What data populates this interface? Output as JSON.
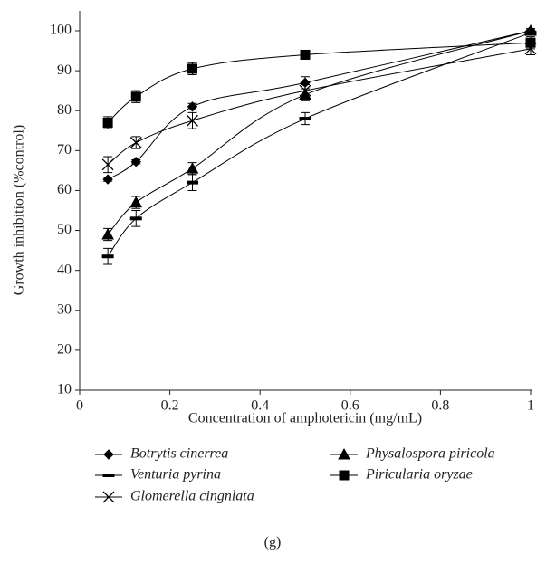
{
  "chart_data": {
    "type": "line",
    "xlabel": "Concentration of amphotericin (mg/mL)",
    "ylabel": "Growth inhibition (%control)",
    "caption": "(g)",
    "x": [
      0.0625,
      0.125,
      0.25,
      0.5,
      1
    ],
    "xlim": [
      0,
      1
    ],
    "xticks": [
      0,
      0.2,
      0.4,
      0.6,
      0.8,
      1
    ],
    "ylim": [
      10,
      100
    ],
    "yticks": [
      10,
      20,
      30,
      40,
      50,
      60,
      70,
      80,
      90,
      100
    ],
    "series": [
      {
        "name": "Botrytis cinerrea",
        "color": "#000000",
        "marker": "diamond",
        "values": [
          62.8,
          67.2,
          81,
          87,
          100
        ],
        "errors": [
          0.5,
          0.5,
          0.8,
          1.5,
          0.5
        ]
      },
      {
        "name": "Venturia pyrina",
        "color": "#000000",
        "marker": "dash",
        "values": [
          43.5,
          53,
          62,
          78,
          99.5
        ],
        "errors": [
          2,
          2,
          2,
          1.5,
          0.5
        ]
      },
      {
        "name": "Glomerella cingnlata",
        "color": "#000000",
        "marker": "x",
        "values": [
          66.5,
          72,
          77.5,
          85,
          95.5
        ],
        "errors": [
          2,
          1.5,
          2,
          1.5,
          1.5
        ]
      },
      {
        "name": "Physalospora piricola",
        "color": "#000000",
        "marker": "triangle",
        "values": [
          49,
          57,
          65.5,
          84,
          100
        ],
        "errors": [
          1.5,
          1.5,
          1.5,
          1.5,
          0.5
        ]
      },
      {
        "name": "Piricularia oryzae",
        "color": "#000000",
        "marker": "square",
        "values": [
          77,
          83.5,
          90.5,
          94,
          97
        ],
        "errors": [
          1.5,
          1.5,
          1.5,
          0.8,
          1.5
        ]
      }
    ]
  }
}
